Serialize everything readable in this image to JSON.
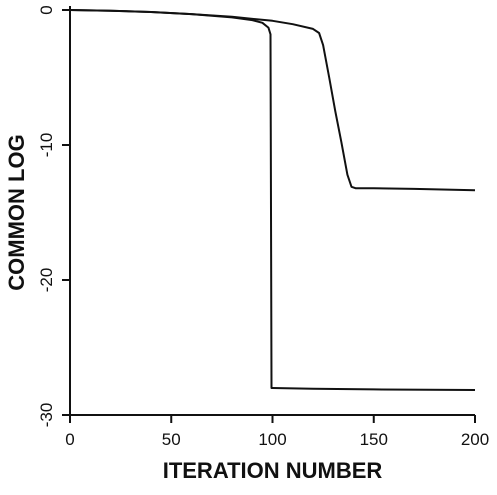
{
  "chart_data": {
    "type": "line",
    "title": "",
    "xlabel": "ITERATION NUMBER",
    "ylabel": "COMMON LOG",
    "xlim": [
      0,
      200
    ],
    "ylim": [
      -30,
      0
    ],
    "xticks": [
      0,
      50,
      100,
      150,
      200
    ],
    "xtick_labels": [
      "0",
      "50",
      "100",
      "150",
      "200"
    ],
    "yticks": [
      0,
      -10,
      -20,
      -30
    ],
    "ytick_labels": [
      "0",
      "-10",
      "-20",
      "-30"
    ],
    "grid": false,
    "legend": "none",
    "line_color": "#111111",
    "series": [
      {
        "x": [
          0,
          20,
          40,
          60,
          80,
          90,
          95,
          98,
          99,
          99.5,
          100,
          120,
          150,
          200
        ],
        "y": [
          0,
          -0.05,
          -0.15,
          -0.3,
          -0.55,
          -0.75,
          -0.95,
          -1.3,
          -1.8,
          -28,
          -28,
          -28.05,
          -28.1,
          -28.15
        ]
      },
      {
        "x": [
          0,
          20,
          40,
          60,
          80,
          100,
          110,
          120,
          123,
          125,
          128,
          131,
          134,
          137,
          139,
          141,
          150,
          170,
          200
        ],
        "y": [
          0,
          -0.05,
          -0.15,
          -0.3,
          -0.5,
          -0.8,
          -1.05,
          -1.4,
          -1.7,
          -2.6,
          -5,
          -7.5,
          -9.8,
          -12.2,
          -13.1,
          -13.2,
          -13.2,
          -13.25,
          -13.35
        ]
      }
    ]
  }
}
